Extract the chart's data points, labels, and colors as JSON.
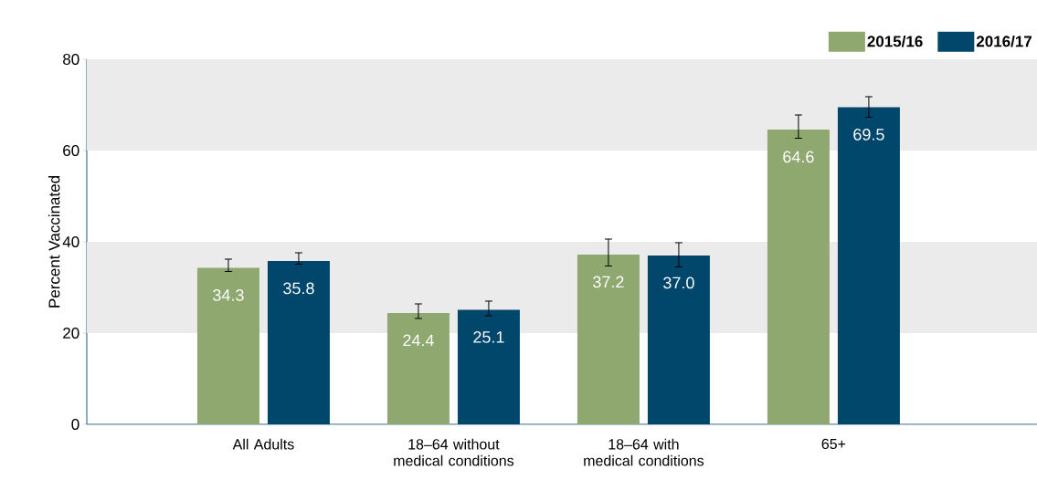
{
  "chart_data": {
    "type": "bar",
    "ylabel": "Percent Vaccinated",
    "categories": [
      "All Adults",
      "18–64 without medical conditions",
      "18–64 with medical conditions",
      "65+"
    ],
    "series": [
      {
        "name": "2015/16",
        "color": "#8fa870",
        "values": [
          34.3,
          24.4,
          37.2,
          64.6
        ],
        "value_labels": [
          "34.3",
          "24.4",
          "37.2",
          "64.6"
        ],
        "errors": [
          [
            33.5,
            36.2
          ],
          [
            23.2,
            26.4
          ],
          [
            34.7,
            40.6
          ],
          [
            62.7,
            67.8
          ]
        ]
      },
      {
        "name": "2016/17",
        "color": "#00476b",
        "values": [
          35.8,
          25.1,
          37.0,
          69.5
        ],
        "value_labels": [
          "35.8",
          "25.1",
          "37.0",
          "69.5"
        ],
        "errors": [
          [
            35.1,
            37.6
          ],
          [
            23.8,
            27.0
          ],
          [
            34.5,
            39.8
          ],
          [
            67.3,
            71.8
          ]
        ]
      }
    ],
    "ylim": [
      0,
      80
    ],
    "yticks": [
      0,
      20,
      40,
      60,
      80
    ],
    "bands": [
      {
        "axis": "y",
        "from": 20,
        "to": 40,
        "color": "#ebebeb"
      },
      {
        "axis": "y",
        "from": 60,
        "to": 80,
        "color": "#ebebeb"
      }
    ],
    "grid": false,
    "legend": "top right"
  }
}
